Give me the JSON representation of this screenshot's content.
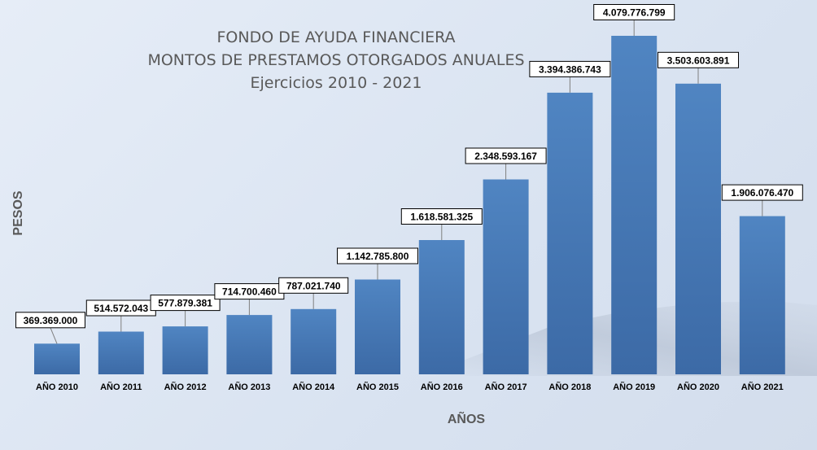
{
  "chart_data": {
    "type": "bar",
    "title": [
      "FONDO DE AYUDA FINANCIERA",
      "MONTOS DE PRESTAMOS OTORGADOS ANUALES",
      "Ejercicios 2010 - 2021"
    ],
    "xlabel": "AÑOS",
    "ylabel": "PESOS",
    "categories": [
      "AÑO 2010",
      "AÑO 2011",
      "AÑO 2012",
      "AÑO 2013",
      "AÑO 2014",
      "AÑO 2015",
      "AÑO 2016",
      "AÑO 2017",
      "AÑO 2018",
      "AÑO 2019",
      "AÑO 2020",
      "AÑO 2021"
    ],
    "values": [
      369369000,
      514572043,
      577879381,
      714700460,
      787021740,
      1142785800,
      1618581325,
      2348593167,
      3394386743,
      4079776799,
      3503603891,
      1906076470
    ],
    "value_labels": [
      "369.369.000",
      "514.572.043",
      "577.879.381",
      "714.700.460",
      "787.021.740",
      "1.142.785.800",
      "1.618.581.325",
      "2.348.593.167",
      "3.394.386.743",
      "4.079.776.799",
      "3.503.603.891",
      "1.906.076.470"
    ],
    "ylim": [
      0,
      4079776799
    ],
    "grid": false,
    "legend": "none",
    "bar_color": "#4a7ab5"
  }
}
